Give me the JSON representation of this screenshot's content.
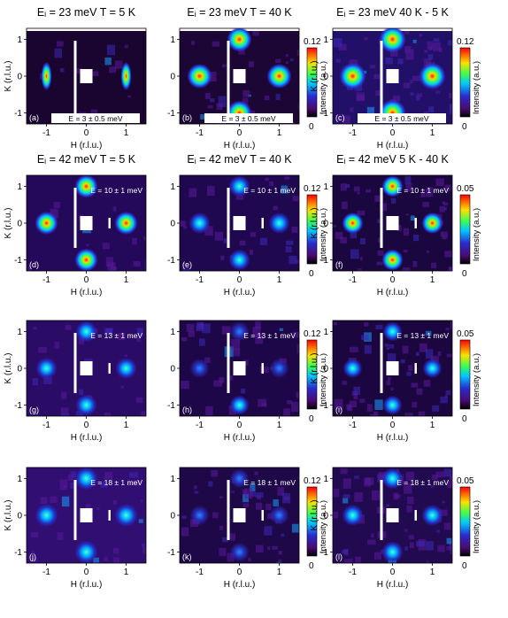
{
  "figure": {
    "row_titles": [
      [
        "Eᵢ = 23 meV  T = 5 K",
        "Eᵢ = 23 meV  T = 40 K",
        "Eᵢ = 23 meV  40 K - 5 K"
      ],
      [
        "Eᵢ = 42 meV  T = 5 K",
        "Eᵢ = 42 meV  T = 40 K",
        "Eᵢ = 42 meV  5 K - 40 K"
      ]
    ],
    "xlabel": "H (r.l.u.)",
    "ylabel": "K (r.l.u.)",
    "xticks": [
      "-1",
      "0",
      "1"
    ],
    "yticks": [
      "1",
      "0",
      "-1"
    ],
    "colorbar_label": "Intensity (a.u.)",
    "panel_letters": [
      "(a)",
      "(b)",
      "(c)",
      "(d)",
      "(e)",
      "(f)",
      "(g)",
      "(h)",
      "(i)",
      "(j)",
      "(k)",
      "(l)"
    ],
    "energy_labels": [
      "E = 3 ± 0.5 meV",
      "E = 10 ± 1 meV",
      "E = 13 ± 1 meV",
      "E = 18 ± 1 meV"
    ],
    "colors": {
      "background": "#1a0530"
    }
  },
  "chart_data": [
    {
      "type": "heatmap",
      "panel": "(a)",
      "title": "Eᵢ = 23 meV  T = 5 K",
      "energy": "E = 3 ± 0.5 meV",
      "xlabel": "H (r.l.u.)",
      "ylabel": "K (r.l.u.)",
      "xlim": [
        -1.5,
        1.5
      ],
      "ylim": [
        -1.3,
        1.3
      ],
      "peaks": [
        [
          -1,
          0
        ],
        [
          1,
          0
        ]
      ]
    },
    {
      "type": "heatmap",
      "panel": "(b)",
      "title": "Eᵢ = 23 meV  T = 40 K",
      "energy": "E = 3 ± 0.5 meV",
      "xlabel": "H (r.l.u.)",
      "xlim": [
        -1.5,
        1.5
      ],
      "ylim": [
        -1.3,
        1.3
      ],
      "colorbar": {
        "min": 0,
        "max": 0.12,
        "ticks": [
          "0.12",
          "0"
        ]
      },
      "peaks": [
        [
          -1,
          0
        ],
        [
          1,
          0
        ],
        [
          0,
          1
        ],
        [
          0,
          -1
        ]
      ]
    },
    {
      "type": "heatmap",
      "panel": "(c)",
      "title": "Eᵢ = 23 meV  40 K - 5 K",
      "energy": "E = 3 ± 0.5 meV",
      "xlabel": "H (r.l.u.)",
      "ylabel": "K (r.l.u.)",
      "xlim": [
        -1.5,
        1.5
      ],
      "ylim": [
        -1.3,
        1.3
      ],
      "colorbar": {
        "min": 0,
        "max": 0.12,
        "ticks": [
          "0.12",
          "0"
        ]
      },
      "peaks": [
        [
          -1,
          0
        ],
        [
          1,
          0
        ],
        [
          0,
          1
        ],
        [
          0,
          -1
        ]
      ]
    },
    {
      "type": "heatmap",
      "panel": "(d)",
      "title": "Eᵢ = 42 meV  T = 5 K",
      "energy": "E = 10 ± 1 meV",
      "xlabel": "H (r.l.u.)",
      "ylabel": "K (r.l.u.)",
      "xlim": [
        -1.5,
        1.5
      ],
      "ylim": [
        -1.3,
        1.3
      ],
      "peaks": [
        [
          -1,
          0
        ],
        [
          1,
          0
        ],
        [
          0,
          1
        ],
        [
          0,
          -1
        ]
      ]
    },
    {
      "type": "heatmap",
      "panel": "(e)",
      "title": "Eᵢ = 42 meV  T = 40 K",
      "energy": "E = 10 ± 1 meV",
      "xlabel": "H (r.l.u.)",
      "xlim": [
        -1.5,
        1.5
      ],
      "ylim": [
        -1.3,
        1.3
      ],
      "colorbar": {
        "min": 0,
        "max": 0.12,
        "ticks": [
          "0.12",
          "0"
        ]
      },
      "peaks": [
        [
          -1,
          0
        ],
        [
          1,
          0
        ],
        [
          0,
          1
        ],
        [
          0,
          -1
        ]
      ]
    },
    {
      "type": "heatmap",
      "panel": "(f)",
      "title": "Eᵢ = 42 meV  5 K - 40 K",
      "energy": "E = 10 ± 1 meV",
      "xlabel": "H (r.l.u.)",
      "ylabel": "K (r.l.u.)",
      "xlim": [
        -1.5,
        1.5
      ],
      "ylim": [
        -1.3,
        1.3
      ],
      "colorbar": {
        "min": 0,
        "max": 0.05,
        "ticks": [
          "0.05",
          "0"
        ]
      },
      "peaks": [
        [
          -1,
          0
        ],
        [
          1,
          0
        ],
        [
          0,
          1
        ],
        [
          0,
          -1
        ]
      ]
    },
    {
      "type": "heatmap",
      "panel": "(g)",
      "energy": "E = 13 ± 1 meV",
      "xlabel": "H (r.l.u.)",
      "ylabel": "K (r.l.u.)",
      "xlim": [
        -1.5,
        1.5
      ],
      "ylim": [
        -1.3,
        1.3
      ],
      "peaks": [
        [
          -1,
          0
        ],
        [
          1,
          0
        ],
        [
          0,
          1
        ],
        [
          0,
          -1
        ]
      ]
    },
    {
      "type": "heatmap",
      "panel": "(h)",
      "energy": "E = 13 ± 1 meV",
      "xlabel": "H (r.l.u.)",
      "xlim": [
        -1.5,
        1.5
      ],
      "ylim": [
        -1.3,
        1.3
      ],
      "colorbar": {
        "min": 0,
        "max": 0.12,
        "ticks": [
          "0.12",
          "0"
        ]
      },
      "peaks": [
        [
          -1,
          0
        ],
        [
          1,
          0
        ],
        [
          0,
          1
        ],
        [
          0,
          -1
        ]
      ]
    },
    {
      "type": "heatmap",
      "panel": "(i)",
      "energy": "E = 13 ± 1 meV",
      "xlabel": "H (r.l.u.)",
      "ylabel": "K (r.l.u.)",
      "xlim": [
        -1.5,
        1.5
      ],
      "ylim": [
        -1.3,
        1.3
      ],
      "colorbar": {
        "min": 0,
        "max": 0.05,
        "ticks": [
          "0.05",
          "0"
        ]
      },
      "peaks": [
        [
          -1,
          0
        ],
        [
          1,
          0
        ],
        [
          0,
          1
        ],
        [
          0,
          -1
        ]
      ]
    },
    {
      "type": "heatmap",
      "panel": "(j)",
      "energy": "E = 18 ± 1 meV",
      "xlabel": "H (r.l.u.)",
      "ylabel": "K (r.l.u.)",
      "xlim": [
        -1.5,
        1.5
      ],
      "ylim": [
        -1.3,
        1.3
      ],
      "peaks": [
        [
          -1,
          0
        ],
        [
          1,
          0
        ],
        [
          0,
          1
        ],
        [
          0,
          -1
        ]
      ]
    },
    {
      "type": "heatmap",
      "panel": "(k)",
      "energy": "E = 18 ± 1 meV",
      "xlabel": "H (r.l.u.)",
      "xlim": [
        -1.5,
        1.5
      ],
      "ylim": [
        -1.3,
        1.3
      ],
      "colorbar": {
        "min": 0,
        "max": 0.12,
        "ticks": [
          "0.12",
          "0"
        ]
      },
      "peaks": [
        [
          -1,
          0
        ],
        [
          1,
          0
        ],
        [
          0,
          1
        ],
        [
          0,
          -1
        ]
      ]
    },
    {
      "type": "heatmap",
      "panel": "(l)",
      "energy": "E = 18 ± 1 meV",
      "xlabel": "H (r.l.u.)",
      "ylabel": "K (r.l.u.)",
      "xlim": [
        -1.5,
        1.5
      ],
      "ylim": [
        -1.3,
        1.3
      ],
      "colorbar": {
        "min": 0,
        "max": 0.05,
        "ticks": [
          "0.05",
          "0"
        ]
      },
      "peaks": [
        [
          -1,
          0
        ],
        [
          1,
          0
        ],
        [
          0,
          1
        ],
        [
          0,
          -1
        ]
      ]
    }
  ]
}
